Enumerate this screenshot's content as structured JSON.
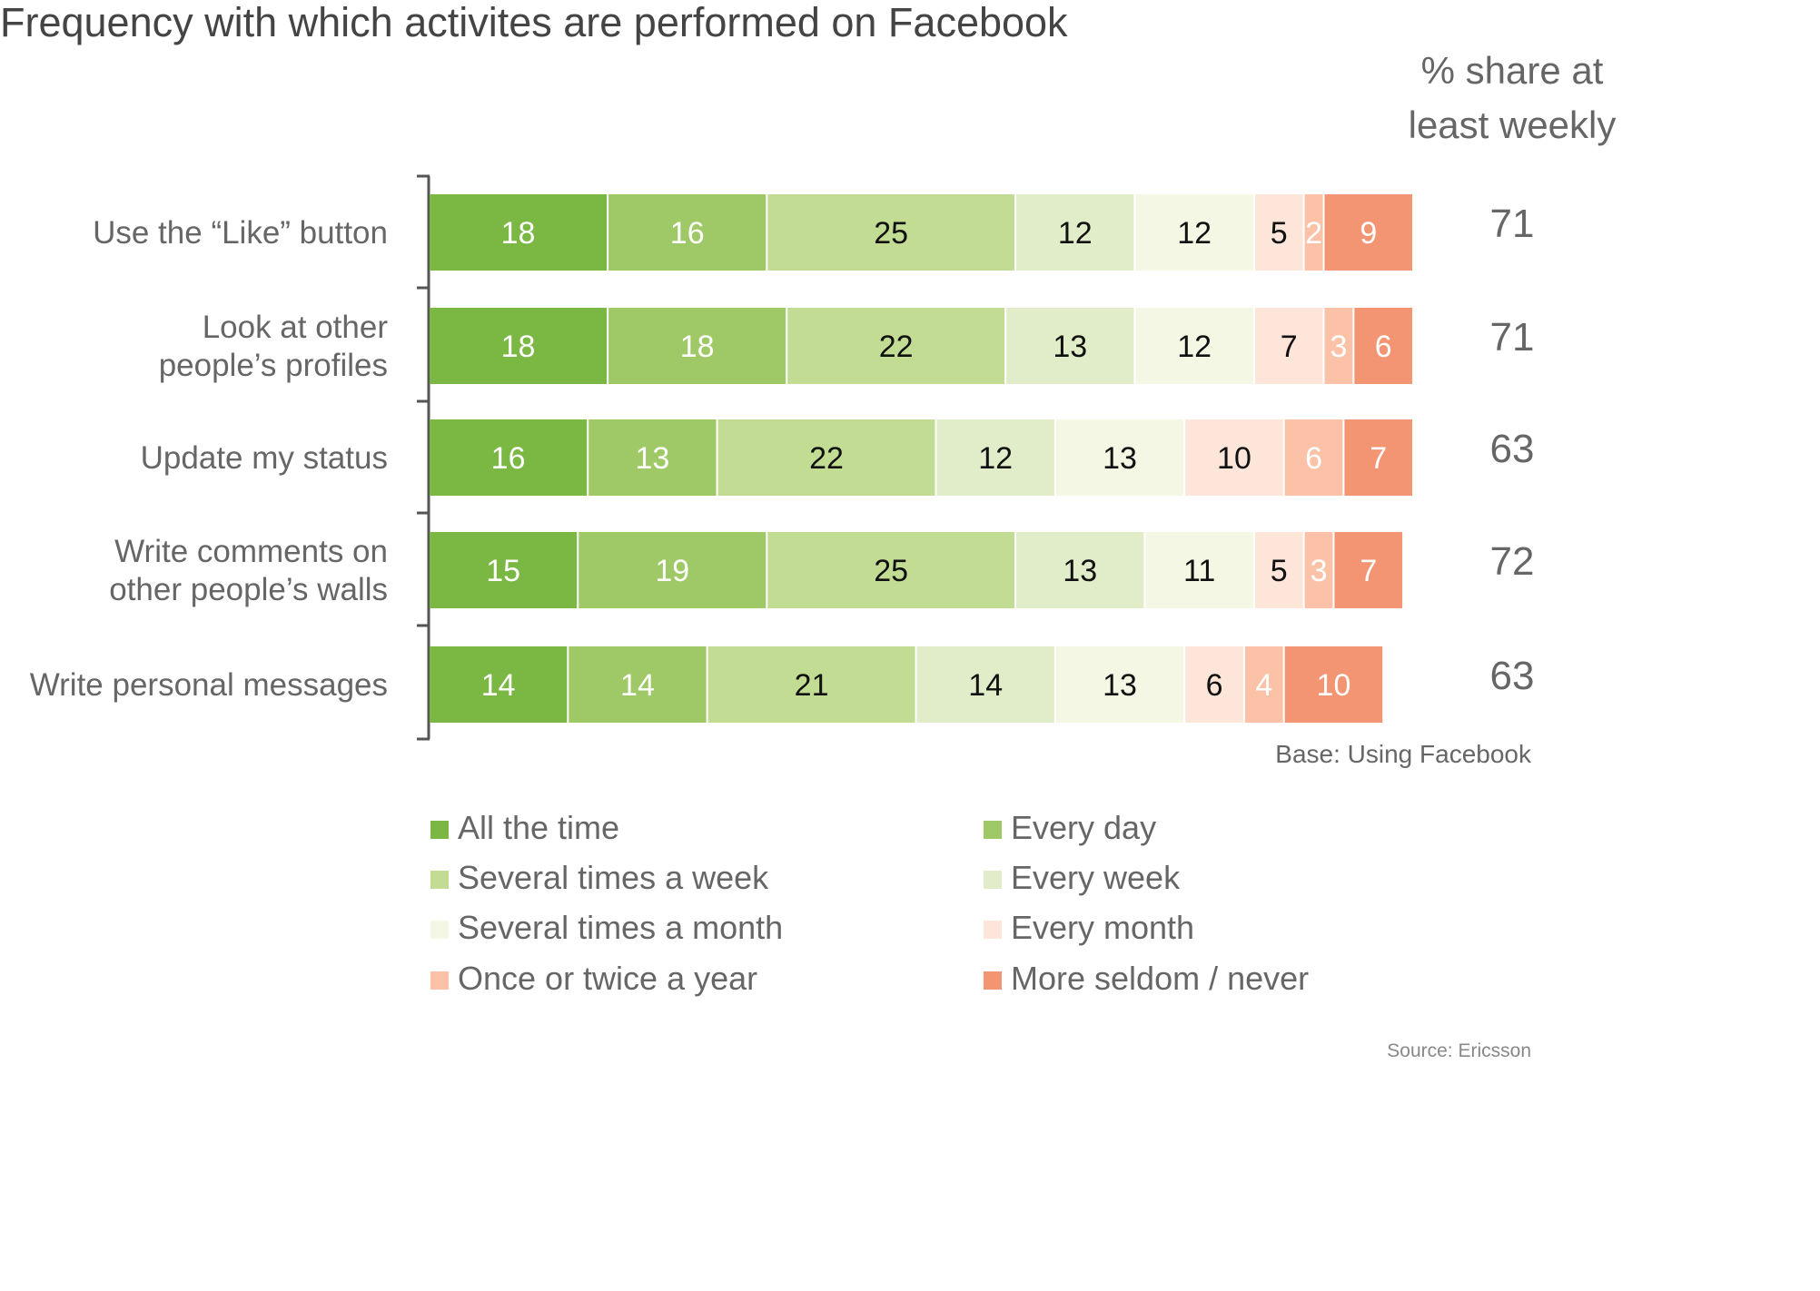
{
  "chart_data": {
    "type": "bar",
    "orientation": "horizontal",
    "stacked": true,
    "title": "Frequency with which activites are performed on Facebook",
    "categories": [
      [
        "Use the “Like” button"
      ],
      [
        "Look at other",
        "people’s profiles"
      ],
      [
        "Update my status"
      ],
      [
        "Write comments on",
        "other people’s walls"
      ],
      [
        "Write personal messages"
      ]
    ],
    "series": [
      {
        "name": "All the time",
        "color": "#7ab743",
        "label_color": "#ffffff",
        "values": [
          18,
          18,
          16,
          15,
          14
        ]
      },
      {
        "name": "Every day",
        "color": "#9fc966",
        "label_color": "#ffffff",
        "values": [
          16,
          18,
          13,
          19,
          14
        ]
      },
      {
        "name": "Several times a week",
        "color": "#c2dc94",
        "label_color": "#111111",
        "values": [
          25,
          22,
          22,
          25,
          21
        ]
      },
      {
        "name": "Every week",
        "color": "#e1edc8",
        "label_color": "#111111",
        "values": [
          12,
          13,
          12,
          13,
          14
        ]
      },
      {
        "name": "Several times a month",
        "color": "#f3f7e3",
        "label_color": "#111111",
        "values": [
          12,
          12,
          13,
          11,
          13
        ]
      },
      {
        "name": "Every month",
        "color": "#fde5da",
        "label_color": "#111111",
        "values": [
          5,
          7,
          10,
          5,
          6
        ]
      },
      {
        "name": "Once or twice a year",
        "color": "#fbc2a8",
        "label_color": "#ffffff",
        "values": [
          2,
          3,
          6,
          3,
          4
        ]
      },
      {
        "name": "More seldom / never",
        "color": "#f39572",
        "label_color": "#ffffff",
        "values": [
          9,
          6,
          7,
          7,
          10
        ]
      }
    ],
    "right_column": {
      "header": [
        "% share at",
        "least weekly"
      ],
      "values": [
        71,
        71,
        63,
        72,
        63
      ]
    },
    "legend_placement": "bottom",
    "grid": false,
    "base_note": "Base: Using Facebook",
    "source": "Source: Ericsson"
  }
}
